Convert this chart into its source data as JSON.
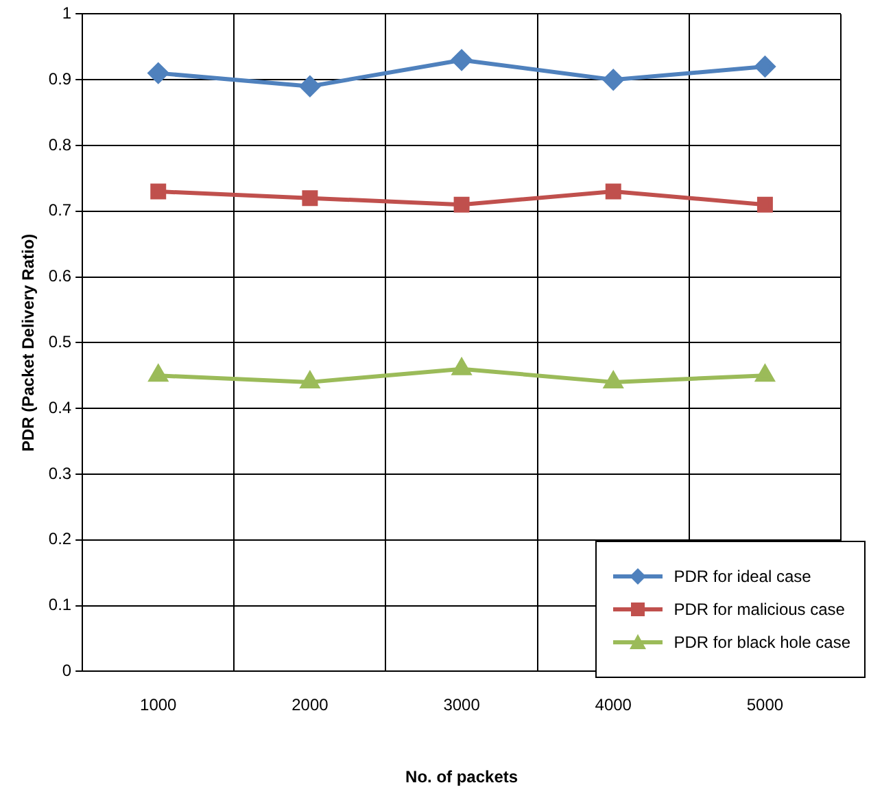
{
  "chart_data": {
    "type": "line",
    "xlabel": "No. of packets",
    "ylabel": "PDR (Packet Delivery Ratio)",
    "categories": [
      "1000",
      "2000",
      "3000",
      "4000",
      "5000"
    ],
    "ylim": [
      0,
      1
    ],
    "yticks": [
      0,
      0.1,
      0.2,
      0.3,
      0.4,
      0.5,
      0.6,
      0.7,
      0.8,
      0.9,
      1
    ],
    "grid": true,
    "legend": "bottom right",
    "line_style": "solid",
    "series": [
      {
        "name": "PDR for ideal case",
        "color": "#4f81bd",
        "marker": "diamond",
        "values": [
          0.91,
          0.89,
          0.93,
          0.9,
          0.92
        ]
      },
      {
        "name": "PDR for malicious case",
        "color": "#c0504d",
        "marker": "square",
        "values": [
          0.73,
          0.72,
          0.71,
          0.73,
          0.71
        ]
      },
      {
        "name": "PDR for black hole case",
        "color": "#9bbb59",
        "marker": "triangle",
        "values": [
          0.45,
          0.44,
          0.46,
          0.44,
          0.45
        ]
      }
    ]
  }
}
